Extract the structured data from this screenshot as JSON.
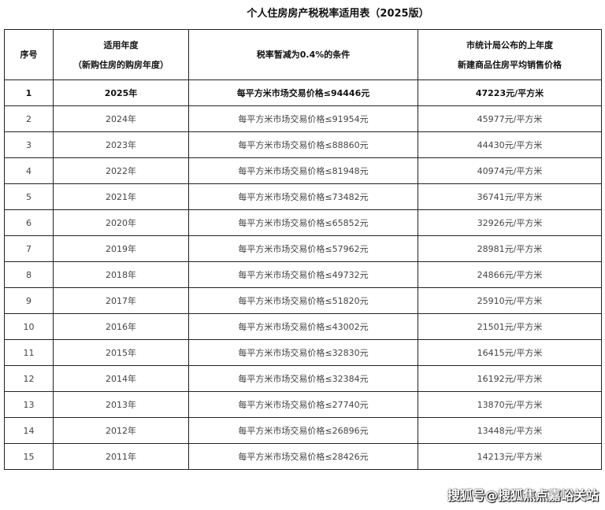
{
  "title": "个人住房房产税税率适用表（2025版）",
  "headers": {
    "index": "序号",
    "year_line1": "适用年度",
    "year_line2": "（新购住房的购房年度）",
    "condition": "税率暂减为0.4%的条件",
    "price_line1": "市统计局公布的上年度",
    "price_line2": "新建商品住房平均销售价格"
  },
  "rows": [
    {
      "index": "1",
      "year": "2025年",
      "condition": "每平方米市场交易价格≤94446元",
      "price": "47223元/平方米",
      "highlight": true
    },
    {
      "index": "2",
      "year": "2024年",
      "condition": "每平方米市场交易价格≤91954元",
      "price": "45977元/平方米"
    },
    {
      "index": "3",
      "year": "2023年",
      "condition": "每平方米市场交易价格≤88860元",
      "price": "44430元/平方米"
    },
    {
      "index": "4",
      "year": "2022年",
      "condition": "每平方米市场交易价格≤81948元",
      "price": "40974元/平方米"
    },
    {
      "index": "5",
      "year": "2021年",
      "condition": "每平方米市场交易价格≤73482元",
      "price": "36741元/平方米"
    },
    {
      "index": "6",
      "year": "2020年",
      "condition": "每平方米市场交易价格≤65852元",
      "price": "32926元/平方米"
    },
    {
      "index": "7",
      "year": "2019年",
      "condition": "每平方米市场交易价格≤57962元",
      "price": "28981元/平方米"
    },
    {
      "index": "8",
      "year": "2018年",
      "condition": "每平方米市场交易价格≤49732元",
      "price": "24866元/平方米"
    },
    {
      "index": "9",
      "year": "2017年",
      "condition": "每平方米市场交易价格≤51820元",
      "price": "25910元/平方米"
    },
    {
      "index": "10",
      "year": "2016年",
      "condition": "每平方米市场交易价格≤43002元",
      "price": "21501元/平方米"
    },
    {
      "index": "11",
      "year": "2015年",
      "condition": "每平方米市场交易价格≤32830元",
      "price": "16415元/平方米"
    },
    {
      "index": "12",
      "year": "2014年",
      "condition": "每平方米市场交易价格≤32384元",
      "price": "16192元/平方米"
    },
    {
      "index": "13",
      "year": "2013年",
      "condition": "每平方米市场交易价格≤27740元",
      "price": "13870元/平方米"
    },
    {
      "index": "14",
      "year": "2012年",
      "condition": "每平方米市场交易价格≤26896元",
      "price": "13448元/平方米"
    },
    {
      "index": "15",
      "year": "2011年",
      "condition": "每平方米市场交易价格≤28426元",
      "price": "14213元/平方米"
    }
  ],
  "watermark": "搜狐号@搜狐焦点嘉峪关站"
}
